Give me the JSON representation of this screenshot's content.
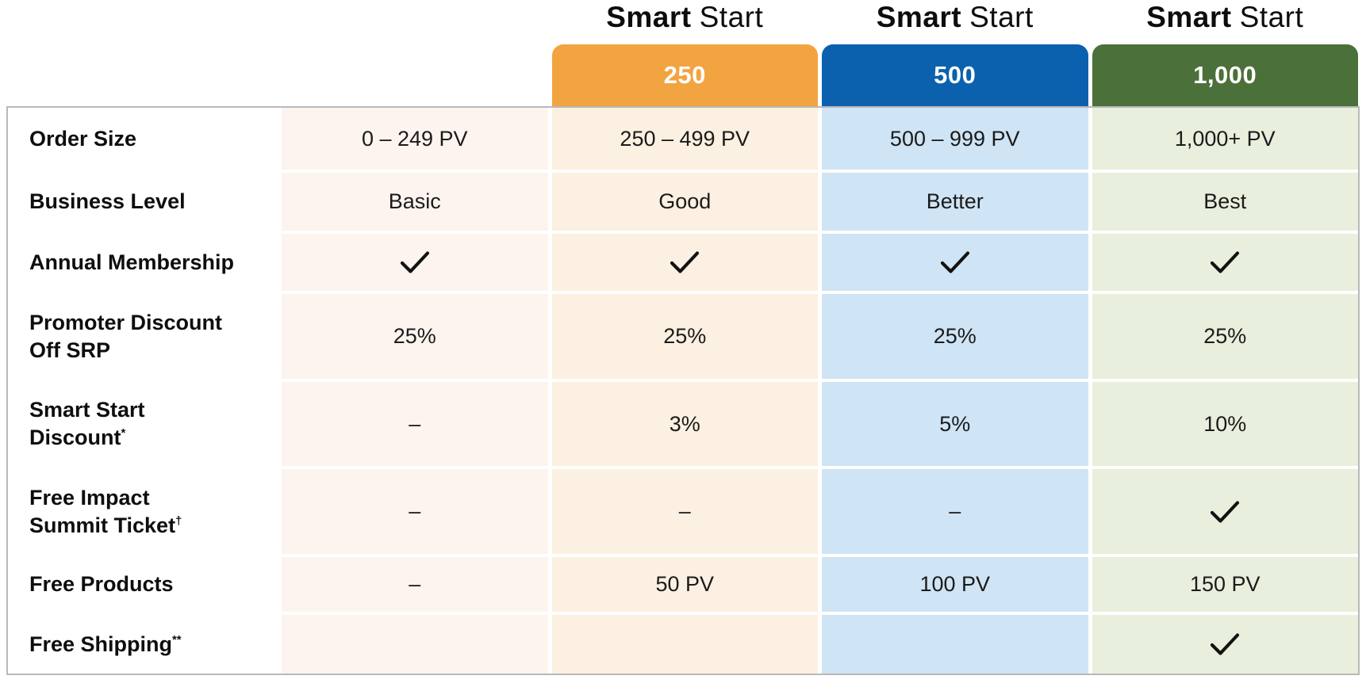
{
  "header": {
    "products": [
      {
        "title_bold": "Smart",
        "title_regular": "Start",
        "tier": "250",
        "color": "#F2A441"
      },
      {
        "title_bold": "Smart",
        "title_regular": "Start",
        "tier": "500",
        "color": "#0B61AD"
      },
      {
        "title_bold": "Smart",
        "title_regular": "Start",
        "tier": "1,000",
        "color": "#4C7039"
      }
    ]
  },
  "table": {
    "column_tints": [
      "#FDF4EF",
      "#FBF0E1",
      "#CFE4F4",
      "#E8EFDD"
    ],
    "border_color": "#B9B9B9",
    "check_icon": "check-icon",
    "rows": [
      {
        "label": "Order Size",
        "sup": "",
        "cells": [
          "0 – 249 PV",
          "250 – 499 PV",
          "500 – 999 PV",
          "1,000+ PV"
        ]
      },
      {
        "label": "Business Level",
        "sup": "",
        "cells": [
          "Basic",
          "Good",
          "Better",
          "Best"
        ]
      },
      {
        "label": "Annual Membership",
        "sup": "",
        "cells": [
          "check",
          "check",
          "check",
          "check"
        ]
      },
      {
        "label": "Promoter Discount\nOff SRP",
        "sup": "",
        "cells": [
          "25%",
          "25%",
          "25%",
          "25%"
        ]
      },
      {
        "label": "Smart Start\nDiscount",
        "sup": "*",
        "cells": [
          "–",
          "3%",
          "5%",
          "10%"
        ]
      },
      {
        "label": "Free Impact\nSummit Ticket",
        "sup": "†",
        "cells": [
          "–",
          "–",
          "–",
          "check"
        ]
      },
      {
        "label": "Free Products",
        "sup": "",
        "cells": [
          "–",
          "50 PV",
          "100 PV",
          "150 PV"
        ]
      },
      {
        "label": "Free Shipping",
        "sup": "**",
        "cells": [
          "",
          "",
          "",
          "check"
        ]
      }
    ]
  },
  "chart_data": {
    "type": "table",
    "column_headers": [
      "",
      "",
      "Smart Start 250",
      "Smart Start 500",
      "Smart Start 1,000"
    ],
    "tier_banners": [
      "250",
      "500",
      "1,000"
    ],
    "row_headers": [
      "Order Size",
      "Business Level",
      "Annual Membership",
      "Promoter Discount Off SRP",
      "Smart Start Discount*",
      "Free Impact Summit Ticket†",
      "Free Products",
      "Free Shipping**"
    ],
    "cells": [
      [
        "0 – 249 PV",
        "250 – 499 PV",
        "500 – 999 PV",
        "1,000+ PV"
      ],
      [
        "Basic",
        "Good",
        "Better",
        "Best"
      ],
      [
        "check",
        "check",
        "check",
        "check"
      ],
      [
        "25%",
        "25%",
        "25%",
        "25%"
      ],
      [
        "–",
        "3%",
        "5%",
        "10%"
      ],
      [
        "–",
        "–",
        "–",
        "check"
      ],
      [
        "–",
        "50 PV",
        "100 PV",
        "150 PV"
      ],
      [
        "",
        "",
        "",
        "check"
      ]
    ],
    "legend_position": "none",
    "grid": false
  }
}
